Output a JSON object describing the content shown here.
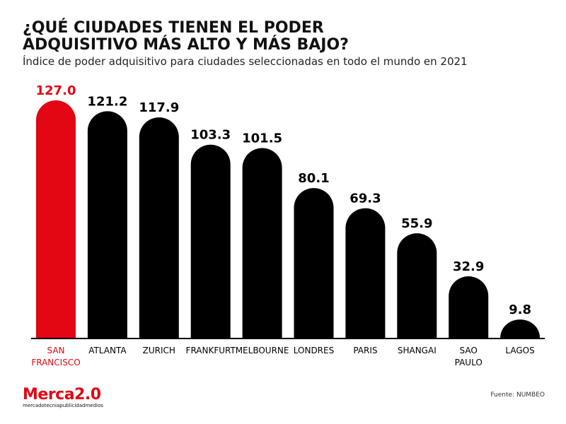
{
  "header": {
    "title_line1": "¿QUÉ CIUDADES TIENEN EL PODER",
    "title_line2": "ADQUISITIVO MÁS ALTO Y MÁS BAJO?",
    "subtitle": "Índice de poder adquisitivo para ciudades seleccionadas en todo el mundo en 2021"
  },
  "chart_data": {
    "type": "bar",
    "title": "¿QUÉ CIUDADES TIENEN EL PODER ADQUISITIVO MÁS ALTO Y MÁS BAJO?",
    "subtitle": "Índice de poder adquisitivo para ciudades seleccionadas en todo el mundo en 2021",
    "categories": [
      [
        "SAN",
        "FRANCISCO"
      ],
      [
        "ATLANTA"
      ],
      [
        "ZURICH"
      ],
      [
        "FRANKFURT"
      ],
      [
        "MELBOURNE"
      ],
      [
        "LONDRES"
      ],
      [
        "PARIS"
      ],
      [
        "SHANGAI"
      ],
      [
        "SAO",
        "PAULO"
      ],
      [
        "LAGOS"
      ]
    ],
    "values": [
      127.0,
      121.2,
      117.9,
      103.3,
      101.5,
      80.1,
      69.3,
      55.9,
      32.9,
      9.8
    ],
    "value_labels": [
      "127.0",
      "121.2",
      "117.9",
      "103.3",
      "101.5",
      "80.1",
      "69.3",
      "55.9",
      "32.9",
      "9.8"
    ],
    "highlight_index": 0,
    "xlabel": "",
    "ylabel": "",
    "ylim": [
      0,
      127
    ],
    "grid": false,
    "colors": {
      "highlight": "#e30613",
      "bar": "#000000",
      "baseline": "#000000"
    }
  },
  "footer": {
    "logo_main": "Merca2.0",
    "logo_sub": "mercadotecniapublicidadmedios",
    "source": "Fuente: NUMBEO"
  }
}
